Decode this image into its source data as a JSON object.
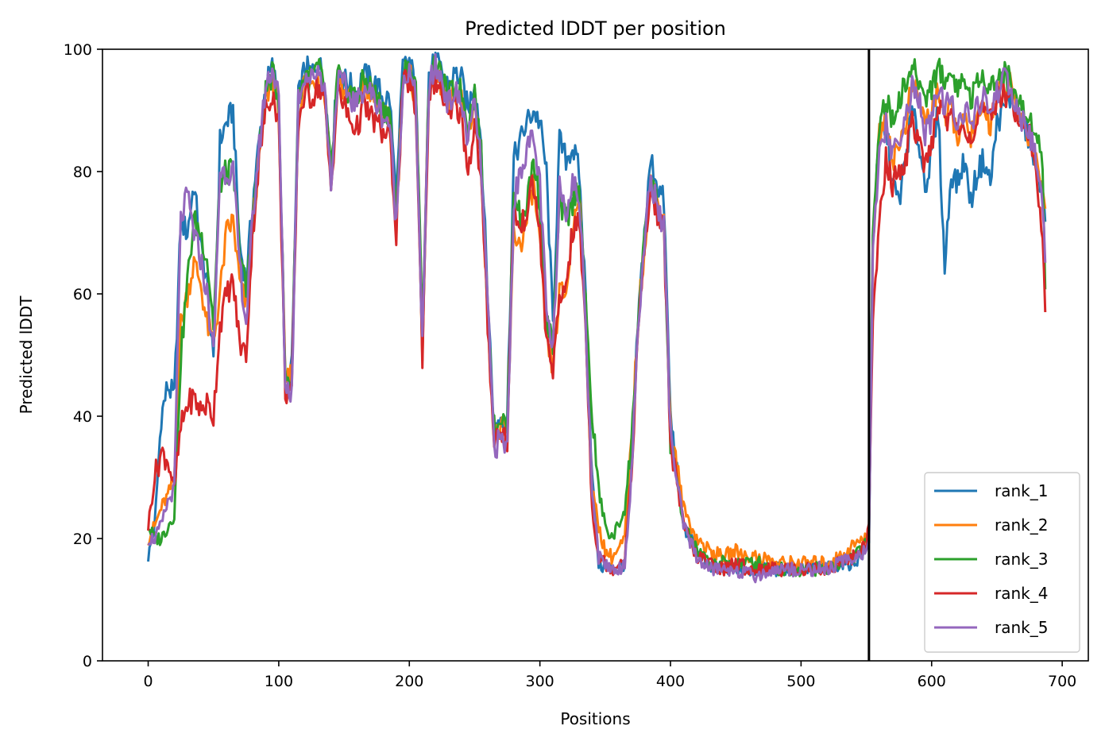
{
  "chart_data": {
    "type": "line",
    "title": "Predicted lDDT per position",
    "xlabel": "Positions",
    "ylabel": "Predicted lDDT",
    "xlim": [
      -35,
      720
    ],
    "ylim": [
      0,
      100
    ],
    "xticks": [
      0,
      100,
      200,
      300,
      400,
      500,
      600,
      700
    ],
    "yticks": [
      0,
      20,
      40,
      60,
      80,
      100
    ],
    "grid": false,
    "legend_position": "lower-right",
    "vertical_line_x": 552,
    "keypoints_x": [
      0,
      5,
      10,
      15,
      20,
      25,
      30,
      35,
      40,
      45,
      50,
      55,
      60,
      65,
      70,
      75,
      80,
      85,
      90,
      95,
      100,
      105,
      110,
      115,
      120,
      125,
      130,
      135,
      140,
      145,
      150,
      155,
      160,
      165,
      170,
      175,
      180,
      185,
      190,
      195,
      200,
      205,
      210,
      215,
      220,
      225,
      230,
      235,
      240,
      245,
      250,
      255,
      260,
      265,
      270,
      275,
      280,
      285,
      290,
      295,
      300,
      305,
      310,
      315,
      320,
      325,
      330,
      335,
      340,
      345,
      350,
      355,
      360,
      365,
      370,
      375,
      380,
      385,
      390,
      395,
      400,
      410,
      420,
      430,
      440,
      450,
      460,
      470,
      480,
      490,
      500,
      510,
      520,
      530,
      540,
      550,
      552,
      555,
      560,
      565,
      570,
      575,
      580,
      585,
      590,
      595,
      600,
      605,
      610,
      615,
      620,
      625,
      630,
      635,
      640,
      645,
      650,
      655,
      660,
      665,
      670,
      675,
      680,
      685,
      687
    ],
    "series": [
      {
        "name": "rank_1",
        "color": "#1f77b4",
        "values": [
          17,
          22,
          40,
          45,
          43,
          72,
          70,
          78,
          68,
          62,
          48,
          85,
          88,
          90,
          68,
          62,
          75,
          85,
          94,
          97,
          92,
          45,
          48,
          92,
          97,
          96,
          98,
          95,
          80,
          96,
          95,
          94,
          93,
          96,
          95,
          94,
          92,
          92,
          75,
          97,
          98,
          94,
          52,
          96,
          98,
          96,
          94,
          96,
          95,
          90,
          95,
          85,
          60,
          38,
          40,
          40,
          82,
          85,
          88,
          90,
          88,
          80,
          55,
          85,
          82,
          84,
          80,
          60,
          30,
          16,
          15,
          15,
          15,
          16,
          30,
          55,
          70,
          82,
          78,
          75,
          40,
          22,
          18,
          15,
          15,
          15,
          15,
          15,
          15,
          15,
          15,
          15,
          15,
          16,
          16,
          18,
          20,
          70,
          85,
          88,
          78,
          75,
          82,
          90,
          85,
          78,
          82,
          90,
          64,
          80,
          78,
          82,
          75,
          80,
          82,
          78,
          88,
          90,
          92,
          90,
          88,
          85,
          80,
          78,
          70
        ]
      },
      {
        "name": "rank_2",
        "color": "#ff7f0e",
        "values": [
          20,
          22,
          25,
          27,
          30,
          55,
          60,
          65,
          62,
          55,
          52,
          60,
          70,
          72,
          62,
          58,
          72,
          82,
          92,
          95,
          90,
          45,
          47,
          90,
          95,
          94,
          96,
          93,
          78,
          95,
          93,
          92,
          91,
          94,
          93,
          91,
          89,
          88,
          71,
          95,
          96,
          92,
          51,
          94,
          96,
          94,
          90,
          93,
          92,
          86,
          92,
          81,
          57,
          36,
          38,
          37,
          70,
          68,
          72,
          78,
          68,
          52,
          48,
          60,
          60,
          70,
          78,
          55,
          28,
          22,
          18,
          17,
          18,
          20,
          35,
          55,
          68,
          79,
          75,
          72,
          38,
          25,
          20,
          18,
          17,
          18,
          17,
          17,
          16,
          16,
          16,
          16,
          16,
          17,
          19,
          20,
          22,
          68,
          86,
          90,
          82,
          84,
          88,
          94,
          92,
          88,
          90,
          94,
          88,
          90,
          86,
          88,
          86,
          88,
          90,
          88,
          92,
          94,
          94,
          90,
          88,
          86,
          82,
          78,
          72
        ]
      },
      {
        "name": "rank_3",
        "color": "#2ca02c",
        "values": [
          22,
          20,
          20,
          22,
          24,
          50,
          62,
          72,
          70,
          66,
          55,
          78,
          80,
          80,
          68,
          60,
          72,
          83,
          93,
          96,
          92,
          46,
          46,
          92,
          96,
          95,
          97,
          94,
          79,
          96,
          94,
          93,
          92,
          95,
          94,
          92,
          90,
          90,
          72,
          96,
          97,
          93,
          55,
          95,
          97,
          95,
          92,
          94,
          93,
          88,
          93,
          83,
          58,
          38,
          40,
          38,
          78,
          72,
          75,
          82,
          75,
          55,
          52,
          75,
          72,
          75,
          78,
          58,
          40,
          28,
          22,
          20,
          22,
          25,
          35,
          55,
          68,
          79,
          74,
          70,
          36,
          22,
          18,
          16,
          16,
          16,
          16,
          16,
          15,
          15,
          15,
          15,
          15,
          16,
          17,
          19,
          21,
          72,
          88,
          92,
          88,
          92,
          94,
          97,
          95,
          92,
          94,
          97,
          95,
          96,
          94,
          95,
          92,
          94,
          96,
          94,
          95,
          96,
          95,
          92,
          90,
          88,
          88,
          80,
          62
        ]
      },
      {
        "name": "rank_4",
        "color": "#d62728",
        "values": [
          22,
          30,
          34,
          33,
          28,
          38,
          42,
          43,
          41,
          42,
          40,
          55,
          60,
          62,
          52,
          50,
          70,
          82,
          90,
          93,
          88,
          44,
          44,
          88,
          93,
          92,
          94,
          92,
          77,
          93,
          91,
          88,
          87,
          91,
          89,
          88,
          86,
          86,
          70,
          94,
          95,
          90,
          50,
          93,
          95,
          93,
          88,
          91,
          89,
          80,
          88,
          78,
          55,
          36,
          38,
          36,
          74,
          70,
          74,
          78,
          70,
          52,
          48,
          58,
          62,
          70,
          72,
          55,
          25,
          17,
          16,
          15,
          16,
          17,
          30,
          53,
          67,
          77,
          73,
          70,
          36,
          22,
          17,
          16,
          15,
          16,
          15,
          15,
          15,
          15,
          15,
          15,
          15,
          16,
          17,
          19,
          22,
          55,
          72,
          82,
          78,
          80,
          82,
          88,
          86,
          80,
          84,
          92,
          88,
          90,
          86,
          88,
          85,
          88,
          90,
          88,
          92,
          93,
          92,
          90,
          88,
          86,
          80,
          68,
          57
        ]
      },
      {
        "name": "rank_5",
        "color": "#9467bd",
        "values": [
          20,
          20,
          22,
          26,
          28,
          72,
          76,
          70,
          66,
          60,
          50,
          80,
          80,
          80,
          65,
          55,
          72,
          84,
          94,
          97,
          92,
          45,
          44,
          92,
          96,
          95,
          97,
          94,
          78,
          95,
          94,
          92,
          91,
          94,
          93,
          91,
          89,
          88,
          71,
          95,
          96,
          92,
          51,
          94,
          97,
          95,
          91,
          93,
          91,
          85,
          91,
          81,
          58,
          35,
          36,
          35,
          75,
          80,
          84,
          85,
          78,
          57,
          50,
          78,
          74,
          78,
          76,
          56,
          28,
          17,
          16,
          15,
          15,
          16,
          30,
          54,
          68,
          79,
          74,
          71,
          37,
          22,
          17,
          15,
          15,
          15,
          14,
          14,
          15,
          15,
          15,
          15,
          15,
          16,
          17,
          18,
          20,
          66,
          82,
          88,
          82,
          86,
          88,
          94,
          92,
          86,
          88,
          94,
          90,
          92,
          88,
          90,
          88,
          90,
          92,
          90,
          93,
          95,
          94,
          90,
          88,
          86,
          82,
          75,
          64
        ]
      }
    ]
  }
}
